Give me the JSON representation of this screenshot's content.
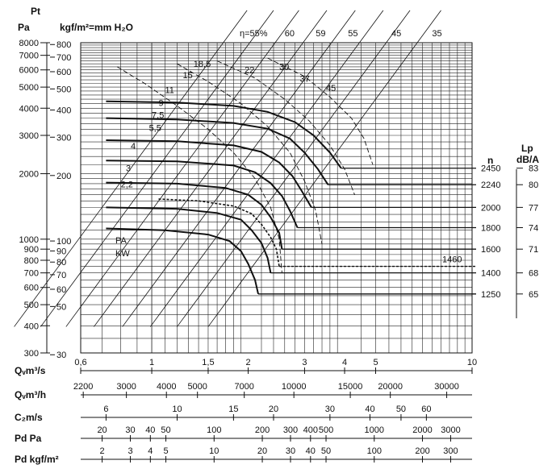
{
  "chart_data": {
    "type": "line",
    "title": "",
    "pt_label": "Pt",
    "pa_label": "Pa",
    "kgf_label": "kgf/m²=mm H₂O",
    "n_label": "n",
    "lp_label": "Lp",
    "lp_unit": "dB/A",
    "pa_kw_label": "PA",
    "kw_label": "KW",
    "eff_prefix": "η=55%",
    "y_axis": {
      "scale": "log",
      "range_pa": [
        300,
        8000
      ],
      "pa_ticks": [
        "8000",
        "7000",
        "6000",
        "5000",
        "4000",
        "3000",
        "2000",
        "1000",
        "900",
        "800",
        "700",
        "600",
        "500",
        "400",
        "300"
      ],
      "kgf_ticks": [
        "800",
        "700",
        "600",
        "500",
        "400",
        "300",
        "200",
        "100",
        "90",
        "80",
        "70",
        "60",
        "50",
        "30"
      ]
    },
    "x_axis": {
      "scale": "log",
      "range_qv_m3s": [
        0.6,
        10
      ],
      "qv_label": "Qᵥm³/s",
      "qv_ticks": [
        "0,6",
        "1",
        "1,5",
        "2",
        "3",
        "4",
        "5",
        "10"
      ],
      "qh_label": "Qᵥm³/h",
      "qh_ticks": [
        "2200",
        "3000",
        "4000",
        "5000",
        "7000",
        "10000",
        "15000",
        "20000",
        "30000"
      ],
      "c2_label": "C₂m/s",
      "c2_ticks": [
        "6",
        "10",
        "15",
        "20",
        "30",
        "40",
        "50",
        "60"
      ],
      "pd_pa_label": "Pd Pa",
      "pd_pa_ticks": [
        "20",
        "30",
        "40",
        "50",
        "100",
        "200",
        "300",
        "400",
        "500",
        "1000",
        "2000",
        "3000"
      ],
      "pd_kgf_label": "Pd kgf/m²",
      "pd_kgf_ticks": [
        "2",
        "3",
        "4",
        "5",
        "10",
        "20",
        "30",
        "40",
        "50",
        "100",
        "200",
        "300"
      ]
    },
    "speeds": [
      {
        "n": "2450",
        "lp": "83"
      },
      {
        "n": "2240",
        "lp": "80"
      },
      {
        "n": "2000",
        "lp": "77"
      },
      {
        "n": "1800",
        "lp": "74"
      },
      {
        "n": "1600",
        "lp": "71"
      },
      {
        "n": "1400",
        "lp": "68"
      },
      {
        "n": "1250",
        "lp": "65"
      }
    ],
    "special_speed": {
      "n": "1460",
      "dashed": true
    },
    "power_labels": [
      "18,5",
      "15",
      "11",
      "9",
      "7,5",
      "5,5",
      "4",
      "3",
      "2,2",
      "22",
      "30",
      "37",
      "45"
    ],
    "efficiency_labels": [
      "60",
      "59",
      "55",
      "45",
      "35"
    ],
    "curves": [
      {
        "n": 2450,
        "points": [
          [
            0.72,
            4300
          ],
          [
            1.2,
            4250
          ],
          [
            1.8,
            4100
          ],
          [
            2.3,
            3850
          ],
          [
            2.8,
            3450
          ],
          [
            3.2,
            3000
          ],
          [
            3.6,
            2500
          ],
          [
            3.9,
            2120
          ]
        ]
      },
      {
        "n": 2240,
        "points": [
          [
            0.72,
            3600
          ],
          [
            1.2,
            3550
          ],
          [
            1.8,
            3420
          ],
          [
            2.3,
            3220
          ],
          [
            2.7,
            2900
          ],
          [
            3.0,
            2500
          ],
          [
            3.3,
            2100
          ],
          [
            3.55,
            1780
          ]
        ]
      },
      {
        "n": 2000,
        "points": [
          [
            0.72,
            2850
          ],
          [
            1.2,
            2820
          ],
          [
            1.8,
            2700
          ],
          [
            2.2,
            2520
          ],
          [
            2.5,
            2250
          ],
          [
            2.75,
            1950
          ],
          [
            2.95,
            1650
          ],
          [
            3.15,
            1400
          ]
        ]
      },
      {
        "n": 1800,
        "points": [
          [
            0.72,
            2300
          ],
          [
            1.2,
            2280
          ],
          [
            1.8,
            2180
          ],
          [
            2.1,
            2030
          ],
          [
            2.35,
            1810
          ],
          [
            2.55,
            1580
          ],
          [
            2.7,
            1350
          ],
          [
            2.85,
            1130
          ]
        ]
      },
      {
        "n": 1600,
        "points": [
          [
            0.72,
            1820
          ],
          [
            1.2,
            1800
          ],
          [
            1.7,
            1720
          ],
          [
            2.0,
            1600
          ],
          [
            2.2,
            1440
          ],
          [
            2.35,
            1260
          ],
          [
            2.5,
            1070
          ],
          [
            2.55,
            900
          ]
        ]
      },
      {
        "n": 1460,
        "dashed": true,
        "points": [
          [
            1.05,
            1530
          ],
          [
            1.4,
            1500
          ],
          [
            1.8,
            1420
          ],
          [
            2.05,
            1310
          ],
          [
            2.2,
            1170
          ],
          [
            2.35,
            1020
          ],
          [
            2.45,
            900
          ],
          [
            2.5,
            750
          ]
        ]
      },
      {
        "n": 1400,
        "points": [
          [
            0.72,
            1400
          ],
          [
            1.2,
            1380
          ],
          [
            1.6,
            1320
          ],
          [
            1.9,
            1230
          ],
          [
            2.05,
            1100
          ],
          [
            2.2,
            960
          ],
          [
            2.3,
            820
          ],
          [
            2.35,
            700
          ]
        ]
      },
      {
        "n": 1250,
        "points": [
          [
            0.72,
            1120
          ],
          [
            1.1,
            1100
          ],
          [
            1.5,
            1050
          ],
          [
            1.75,
            980
          ],
          [
            1.9,
            880
          ],
          [
            2.0,
            770
          ],
          [
            2.1,
            650
          ],
          [
            2.15,
            560
          ]
        ]
      }
    ]
  }
}
